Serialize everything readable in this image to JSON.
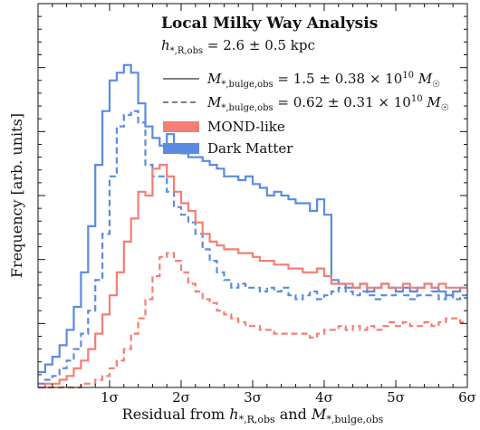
{
  "chart_data": {
    "type": "line",
    "title": "",
    "xlabel": "Residual from h*,R,obs and M*,bulge,obs",
    "ylabel": "Frequency [arb. units]",
    "xlim": [
      0,
      6
    ],
    "ylim": [
      0,
      1
    ],
    "x_ticks": [
      1,
      2,
      3,
      4,
      5,
      6
    ],
    "x_tick_labels": [
      "1σ",
      "2σ",
      "3σ",
      "4σ",
      "5σ",
      "6σ"
    ],
    "grid": false,
    "legend": {
      "placement": "top-right",
      "heading": "Local Milky Way Analysis",
      "subheading": "h*,R,obs = 2.6 ± 0.5 kpc",
      "linestyles": [
        {
          "style": "solid",
          "label": "M*,bulge,obs = 1.5 ± 0.38 × 10¹⁰ M☉"
        },
        {
          "style": "dashed",
          "label": "M*,bulge,obs = 0.62 ± 0.31 × 10¹⁰ M☉"
        }
      ],
      "models": [
        {
          "label": "MOND-like",
          "color": "#f47e74"
        },
        {
          "label": "Dark Matter",
          "color": "#5b8be0"
        }
      ]
    },
    "bin_width": 0.1,
    "series": [
      {
        "model": "Dark Matter",
        "linestyle": "solid",
        "color": "#5b8be0",
        "x": [
          0.1,
          0.2,
          0.3,
          0.4,
          0.5,
          0.6,
          0.7,
          0.8,
          0.9,
          1.0,
          1.1,
          1.2,
          1.3,
          1.4,
          1.5,
          1.6,
          1.7,
          1.8,
          1.9,
          2.0,
          2.1,
          2.2,
          2.3,
          2.4,
          2.5,
          2.6,
          2.7,
          2.8,
          2.9,
          3.0,
          3.1,
          3.2,
          3.3,
          3.4,
          3.5,
          3.6,
          3.7,
          3.8,
          3.9,
          4.0,
          4.1,
          4.2,
          4.3,
          4.4,
          4.5,
          4.6,
          4.7,
          4.8,
          4.9,
          5.0,
          5.1,
          5.2,
          5.3,
          5.4,
          5.5,
          5.6,
          5.7,
          5.8,
          5.9,
          6.0
        ],
        "values": [
          0.04,
          0.06,
          0.08,
          0.11,
          0.15,
          0.21,
          0.3,
          0.42,
          0.58,
          0.72,
          0.8,
          0.82,
          0.84,
          0.82,
          0.74,
          0.68,
          0.65,
          0.63,
          0.66,
          0.62,
          0.61,
          0.6,
          0.6,
          0.59,
          0.58,
          0.57,
          0.55,
          0.55,
          0.54,
          0.55,
          0.53,
          0.52,
          0.5,
          0.51,
          0.5,
          0.49,
          0.48,
          0.48,
          0.46,
          0.49,
          0.45,
          0.28,
          0.27,
          0.26,
          0.26,
          0.27,
          0.25,
          0.26,
          0.27,
          0.26,
          0.25,
          0.26,
          0.25,
          0.26,
          0.27,
          0.26,
          0.25,
          0.24,
          0.25,
          0.26
        ]
      },
      {
        "model": "Dark Matter",
        "linestyle": "dashed",
        "color": "#5b8be0",
        "x": [
          0.1,
          0.2,
          0.3,
          0.4,
          0.5,
          0.6,
          0.7,
          0.8,
          0.9,
          1.0,
          1.1,
          1.2,
          1.3,
          1.4,
          1.5,
          1.6,
          1.7,
          1.8,
          1.9,
          2.0,
          2.1,
          2.2,
          2.3,
          2.4,
          2.5,
          2.6,
          2.7,
          2.8,
          2.9,
          3.0,
          3.1,
          3.2,
          3.3,
          3.4,
          3.5,
          3.6,
          3.7,
          3.8,
          3.9,
          4.0,
          4.1,
          4.2,
          4.3,
          4.4,
          4.5,
          4.6,
          4.7,
          4.8,
          4.9,
          5.0,
          5.1,
          5.2,
          5.3,
          5.4,
          5.5,
          5.6,
          5.7,
          5.8,
          5.9,
          6.0
        ],
        "values": [
          0.01,
          0.02,
          0.03,
          0.05,
          0.07,
          0.1,
          0.14,
          0.2,
          0.28,
          0.4,
          0.55,
          0.68,
          0.71,
          0.72,
          0.69,
          0.58,
          0.55,
          0.55,
          0.51,
          0.47,
          0.45,
          0.43,
          0.4,
          0.36,
          0.33,
          0.3,
          0.28,
          0.26,
          0.27,
          0.26,
          0.26,
          0.25,
          0.26,
          0.25,
          0.26,
          0.24,
          0.23,
          0.24,
          0.25,
          0.23,
          0.24,
          0.25,
          0.26,
          0.25,
          0.24,
          0.25,
          0.24,
          0.23,
          0.24,
          0.24,
          0.25,
          0.24,
          0.23,
          0.24,
          0.24,
          0.25,
          0.23,
          0.24,
          0.23,
          0.24
        ]
      },
      {
        "model": "MOND-like",
        "linestyle": "solid",
        "color": "#f47e74",
        "x": [
          0.1,
          0.2,
          0.3,
          0.4,
          0.5,
          0.6,
          0.7,
          0.8,
          0.9,
          1.0,
          1.1,
          1.2,
          1.3,
          1.4,
          1.5,
          1.6,
          1.7,
          1.8,
          1.9,
          2.0,
          2.1,
          2.2,
          2.3,
          2.4,
          2.5,
          2.6,
          2.7,
          2.8,
          2.9,
          3.0,
          3.1,
          3.2,
          3.3,
          3.4,
          3.5,
          3.6,
          3.7,
          3.8,
          3.9,
          4.0,
          4.1,
          4.2,
          4.3,
          4.4,
          4.5,
          4.6,
          4.7,
          4.8,
          4.9,
          5.0,
          5.1,
          5.2,
          5.3,
          5.4,
          5.5,
          5.6,
          5.7,
          5.8,
          5.9,
          6.0
        ],
        "values": [
          0.0,
          0.01,
          0.01,
          0.02,
          0.03,
          0.05,
          0.07,
          0.1,
          0.14,
          0.19,
          0.24,
          0.3,
          0.38,
          0.44,
          0.51,
          0.5,
          0.57,
          0.58,
          0.55,
          0.51,
          0.48,
          0.46,
          0.43,
          0.4,
          0.38,
          0.37,
          0.36,
          0.36,
          0.35,
          0.35,
          0.34,
          0.33,
          0.33,
          0.32,
          0.32,
          0.31,
          0.31,
          0.3,
          0.3,
          0.31,
          0.29,
          0.27,
          0.27,
          0.27,
          0.26,
          0.27,
          0.26,
          0.26,
          0.27,
          0.26,
          0.26,
          0.27,
          0.26,
          0.26,
          0.27,
          0.26,
          0.27,
          0.26,
          0.26,
          0.26
        ]
      },
      {
        "model": "MOND-like",
        "linestyle": "dashed",
        "color": "#f47e74",
        "x": [
          0.1,
          0.2,
          0.3,
          0.4,
          0.5,
          0.6,
          0.7,
          0.8,
          0.9,
          1.0,
          1.1,
          1.2,
          1.3,
          1.4,
          1.5,
          1.6,
          1.7,
          1.8,
          1.9,
          2.0,
          2.1,
          2.2,
          2.3,
          2.4,
          2.5,
          2.6,
          2.7,
          2.8,
          2.9,
          3.0,
          3.1,
          3.2,
          3.3,
          3.4,
          3.5,
          3.6,
          3.7,
          3.8,
          3.9,
          4.0,
          4.1,
          4.2,
          4.3,
          4.4,
          4.5,
          4.6,
          4.7,
          4.8,
          4.9,
          5.0,
          5.1,
          5.2,
          5.3,
          5.4,
          5.5,
          5.6,
          5.7,
          5.8,
          5.9,
          6.0
        ],
        "values": [
          0.0,
          0.0,
          0.0,
          0.0,
          0.0,
          0.0,
          0.01,
          0.01,
          0.02,
          0.03,
          0.05,
          0.07,
          0.1,
          0.14,
          0.18,
          0.23,
          0.29,
          0.34,
          0.35,
          0.33,
          0.3,
          0.27,
          0.25,
          0.23,
          0.22,
          0.2,
          0.19,
          0.18,
          0.17,
          0.16,
          0.16,
          0.15,
          0.15,
          0.14,
          0.14,
          0.14,
          0.14,
          0.14,
          0.13,
          0.14,
          0.15,
          0.15,
          0.16,
          0.15,
          0.16,
          0.15,
          0.16,
          0.15,
          0.16,
          0.17,
          0.16,
          0.17,
          0.16,
          0.16,
          0.17,
          0.16,
          0.17,
          0.18,
          0.18,
          0.17
        ]
      }
    ]
  }
}
